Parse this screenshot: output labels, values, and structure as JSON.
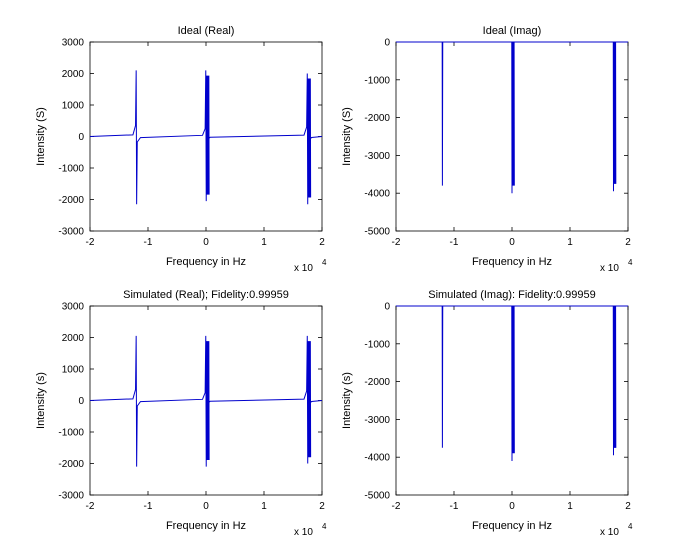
{
  "figure": {
    "background": "#ffffff",
    "line_color": "#0000cc",
    "axis_color": "#000000"
  },
  "chart_data": [
    {
      "type": "line",
      "title": "Ideal (Real)",
      "xlabel": "Frequency in Hz",
      "ylabel": "Intensity (S)",
      "xlim": [
        -2,
        2
      ],
      "ylim": [
        -3000,
        3000
      ],
      "x_ticks": [
        "-2",
        "-1",
        "0",
        "1",
        "2"
      ],
      "y_ticks": [
        "3000",
        "2000",
        "1000",
        "0",
        "-1000",
        "-2000",
        "-3000"
      ],
      "x_multiplier": "x 10",
      "x_multiplier_exp": "4",
      "grid": false,
      "series": [
        {
          "kind": "dispersive",
          "baseline": 0,
          "peaks": [
            {
              "x": -1.2,
              "up": 2100,
              "down": -2150,
              "shoulder": 350
            },
            {
              "x": 0.0,
              "up": 2100,
              "down": -2050,
              "shoulder": 250,
              "dense": true
            },
            {
              "x": 1.75,
              "up": 2000,
              "down": -2150,
              "shoulder": 300,
              "dense": true
            }
          ]
        }
      ]
    },
    {
      "type": "line",
      "title": "Ideal (Imag)",
      "xlabel": "Frequency in Hz",
      "ylabel": "Intensity (S)",
      "xlim": [
        -2,
        2
      ],
      "ylim": [
        -5000,
        0
      ],
      "x_ticks": [
        "-2",
        "-1",
        "0",
        "1",
        "2"
      ],
      "y_ticks": [
        "0",
        "-1000",
        "-2000",
        "-3000",
        "-4000",
        "-5000"
      ],
      "x_multiplier": "x 10",
      "x_multiplier_exp": "4",
      "grid": false,
      "series": [
        {
          "kind": "absorptive",
          "baseline": 0,
          "peaks": [
            {
              "x": -1.2,
              "down": -3800
            },
            {
              "x": 0.0,
              "down": -4000,
              "dense": true
            },
            {
              "x": 1.75,
              "down": -3950,
              "dense": true
            }
          ]
        }
      ]
    },
    {
      "type": "line",
      "title": "Simulated (Real); Fidelity:0.99959",
      "xlabel": "Frequency in Hz",
      "ylabel": "Intensity (s)",
      "xlim": [
        -2,
        2
      ],
      "ylim": [
        -3000,
        3000
      ],
      "x_ticks": [
        "-2",
        "-1",
        "0",
        "1",
        "2"
      ],
      "y_ticks": [
        "3000",
        "2000",
        "1000",
        "0",
        "-1000",
        "-2000",
        "-3000"
      ],
      "x_multiplier": "x 10",
      "x_multiplier_exp": "4",
      "grid": false,
      "series": [
        {
          "kind": "dispersive",
          "baseline": 0,
          "peaks": [
            {
              "x": -1.2,
              "up": 2050,
              "down": -2100,
              "shoulder": 350
            },
            {
              "x": 0.0,
              "up": 2050,
              "down": -2100,
              "shoulder": 250,
              "dense": true
            },
            {
              "x": 1.75,
              "up": 2050,
              "down": -2000,
              "shoulder": 300,
              "dense": true
            }
          ]
        }
      ]
    },
    {
      "type": "line",
      "title": "Simulated (Imag): Fidelity:0.99959",
      "xlabel": "Frequency in Hz",
      "ylabel": "Intensity (s)",
      "xlim": [
        -2,
        2
      ],
      "ylim": [
        -5000,
        0
      ],
      "x_ticks": [
        "-2",
        "-1",
        "0",
        "1",
        "2"
      ],
      "y_ticks": [
        "0",
        "-1000",
        "-2000",
        "-3000",
        "-4000",
        "-5000"
      ],
      "x_multiplier": "x 10",
      "x_multiplier_exp": "4",
      "grid": false,
      "series": [
        {
          "kind": "absorptive",
          "baseline": 0,
          "peaks": [
            {
              "x": -1.2,
              "down": -3750
            },
            {
              "x": 0.0,
              "down": -4100,
              "dense": true
            },
            {
              "x": 1.75,
              "down": -3950,
              "dense": true
            }
          ]
        }
      ]
    }
  ]
}
